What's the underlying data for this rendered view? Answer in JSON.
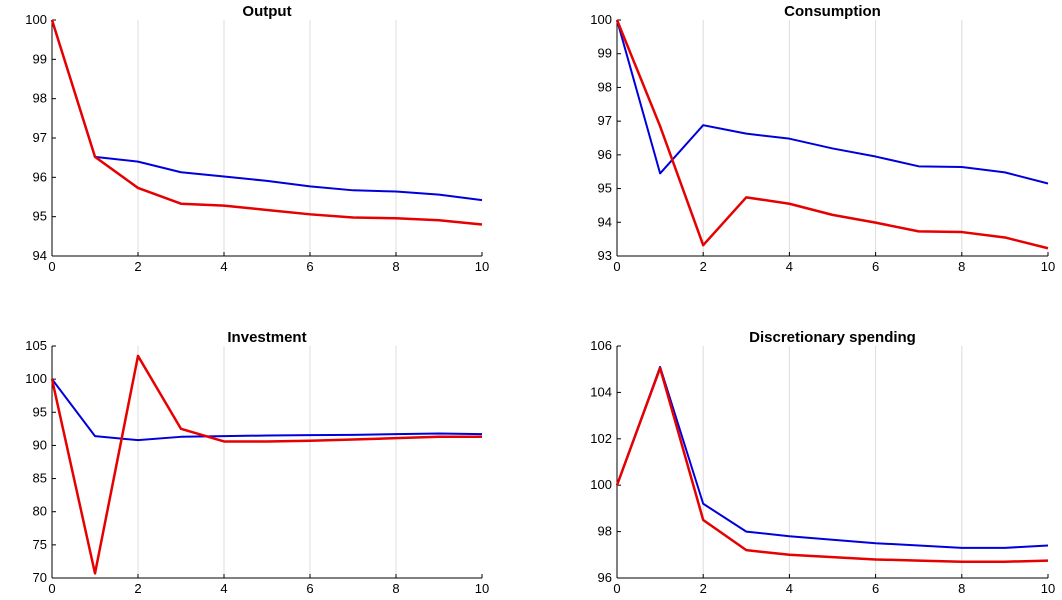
{
  "chart_data": [
    {
      "type": "line",
      "title": "Output",
      "x": [
        0,
        1,
        2,
        3,
        4,
        5,
        6,
        7,
        8,
        9,
        10
      ],
      "xlim": [
        0,
        10
      ],
      "ylim": [
        94,
        100
      ],
      "xticks": [
        0,
        2,
        4,
        6,
        8,
        10
      ],
      "yticks": [
        94,
        95,
        96,
        97,
        98,
        99,
        100
      ],
      "grid": "vertical",
      "series": [
        {
          "color": "#0000dd",
          "values": [
            100,
            96.52,
            96.4,
            96.13,
            96.02,
            95.91,
            95.77,
            95.67,
            95.64,
            95.56,
            95.42
          ]
        },
        {
          "color": "#e60000",
          "values": [
            100,
            96.52,
            95.73,
            95.33,
            95.28,
            95.17,
            95.06,
            94.98,
            94.96,
            94.91,
            94.8
          ]
        }
      ]
    },
    {
      "type": "line",
      "title": "Consumption",
      "x": [
        0,
        1,
        2,
        3,
        4,
        5,
        6,
        7,
        8,
        9,
        10
      ],
      "xlim": [
        0,
        10
      ],
      "ylim": [
        93,
        100
      ],
      "xticks": [
        0,
        2,
        4,
        6,
        8,
        10
      ],
      "yticks": [
        93,
        94,
        95,
        96,
        97,
        98,
        99,
        100
      ],
      "grid": "vertical",
      "series": [
        {
          "color": "#0000dd",
          "values": [
            100,
            95.45,
            96.88,
            96.63,
            96.48,
            96.19,
            95.95,
            95.66,
            95.64,
            95.48,
            95.15
          ]
        },
        {
          "color": "#e60000",
          "values": [
            100,
            96.85,
            93.32,
            94.74,
            94.55,
            94.22,
            93.99,
            93.73,
            93.71,
            93.55,
            93.23
          ]
        }
      ]
    },
    {
      "type": "line",
      "title": "Investment",
      "x": [
        0,
        1,
        2,
        3,
        4,
        5,
        6,
        7,
        8,
        9,
        10
      ],
      "xlim": [
        0,
        10
      ],
      "ylim": [
        70,
        105
      ],
      "xticks": [
        0,
        2,
        4,
        6,
        8,
        10
      ],
      "yticks": [
        70,
        75,
        80,
        85,
        90,
        95,
        100,
        105
      ],
      "grid": "vertical",
      "series": [
        {
          "color": "#0000dd",
          "values": [
            100,
            91.4,
            90.8,
            91.3,
            91.4,
            91.5,
            91.55,
            91.6,
            91.7,
            91.8,
            91.7
          ]
        },
        {
          "color": "#e60000",
          "values": [
            100,
            70.7,
            103.5,
            92.5,
            90.6,
            90.6,
            90.7,
            90.9,
            91.1,
            91.3,
            91.3
          ]
        }
      ]
    },
    {
      "type": "line",
      "title": "Discretionary spending",
      "x": [
        0,
        1,
        2,
        3,
        4,
        5,
        6,
        7,
        8,
        9,
        10
      ],
      "xlim": [
        0,
        10
      ],
      "ylim": [
        96,
        106
      ],
      "xticks": [
        0,
        2,
        4,
        6,
        8,
        10
      ],
      "yticks": [
        96,
        98,
        100,
        102,
        104,
        106
      ],
      "grid": "vertical",
      "series": [
        {
          "color": "#0000dd",
          "values": [
            100,
            105.1,
            99.2,
            98.0,
            97.8,
            97.65,
            97.5,
            97.4,
            97.3,
            97.3,
            97.4
          ]
        },
        {
          "color": "#e60000",
          "values": [
            100,
            105.05,
            98.5,
            97.2,
            97.0,
            96.9,
            96.8,
            96.75,
            96.7,
            96.7,
            96.75
          ]
        }
      ]
    }
  ]
}
